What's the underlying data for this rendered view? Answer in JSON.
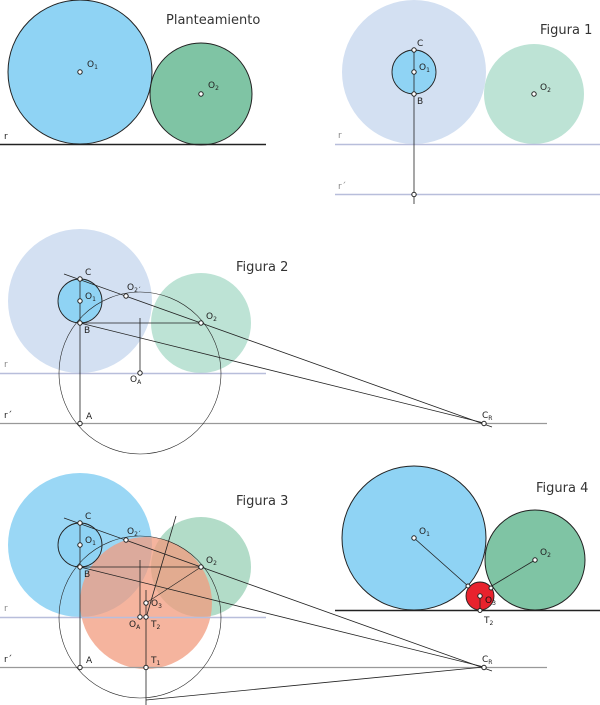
{
  "colors": {
    "circle1": "#8fd3f4",
    "circle2": "#7fc4a4",
    "circle1_faded": "#d3e0f2",
    "circle2_faded": "#bde3d5",
    "circle3": "#e8222d",
    "salmon": "#f29b7d",
    "line_r_faded": "#b8bedb",
    "stroke": "#222222"
  },
  "panels": {
    "planteamiento": {
      "title": "Planteamiento",
      "labels": {
        "o1": "O",
        "o1_sub": "1",
        "o2": "O",
        "o2_sub": "2",
        "r": "r"
      }
    },
    "figura1": {
      "title": "Figura 1",
      "labels": {
        "c": "C",
        "b": "B",
        "o1": "O",
        "o1_sub": "1",
        "o2": "O",
        "o2_sub": "2",
        "r": "r",
        "rp": "r´"
      }
    },
    "figura2": {
      "title": "Figura 2",
      "labels": {
        "c": "C",
        "b": "B",
        "a": "A",
        "o1": "O",
        "o1_sub": "1",
        "o2": "O",
        "o2_sub": "2",
        "o2p": "O",
        "o2p_sub": "2´",
        "oa": "O",
        "oa_sub": "A",
        "cr": "C",
        "cr_sub": "R",
        "r": "r",
        "rp": "r´"
      }
    },
    "figura3": {
      "title": "Figura 3",
      "labels": {
        "c": "C",
        "b": "B",
        "a": "A",
        "o1": "O",
        "o1_sub": "1",
        "o2": "O",
        "o2_sub": "2",
        "o2p": "O",
        "o2p_sub": "2´",
        "oa": "O",
        "oa_sub": "A",
        "o3": "O",
        "o3_sub": "3",
        "t1": "T",
        "t1_sub": "1",
        "t2": "T",
        "t2_sub": "2",
        "cr": "C",
        "cr_sub": "R",
        "r": "r",
        "rp": "r´"
      }
    },
    "figura4": {
      "title": "Figura 4",
      "labels": {
        "o1": "O",
        "o1_sub": "1",
        "o2": "O",
        "o2_sub": "2",
        "o3": "O",
        "o3_sub": "3",
        "t2": "T",
        "t2_sub": "2"
      }
    }
  }
}
